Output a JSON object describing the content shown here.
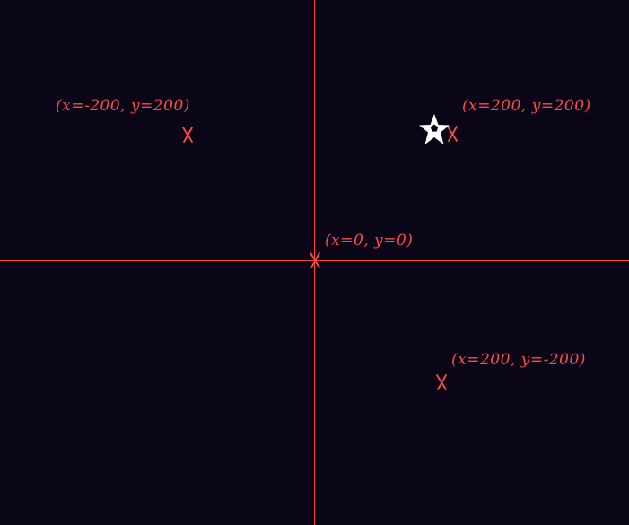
{
  "scene": {
    "background_color": "#0a0618",
    "axis_color": "#ff3b3b",
    "marker_color": "#ff4a4a",
    "sprite_color": "#ffffff",
    "sprite_icon": "star-icon",
    "points": [
      {
        "label": "(x=-200, y=200)"
      },
      {
        "label": "(x=200, y=200)"
      },
      {
        "label": "(x=0, y=0)"
      },
      {
        "label": "(x=200, y=-200)"
      }
    ]
  }
}
